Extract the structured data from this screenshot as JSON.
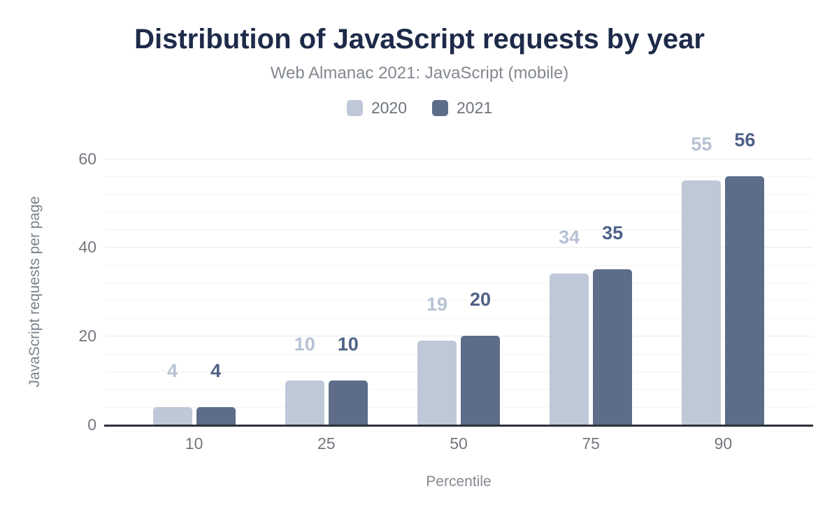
{
  "chart_data": {
    "type": "bar",
    "title": "Distribution of JavaScript requests by year",
    "subtitle": "Web Almanac 2021: JavaScript (mobile)",
    "categories": [
      "10",
      "25",
      "50",
      "75",
      "90"
    ],
    "series": [
      {
        "name": "2020",
        "color": "#bfc8d7",
        "label_color": "#b7c2d4",
        "values": [
          4,
          10,
          19,
          34,
          55
        ]
      },
      {
        "name": "2021",
        "color": "#5d6d89",
        "label_color": "#4f6187",
        "values": [
          4,
          10,
          20,
          35,
          56
        ]
      }
    ],
    "xlabel": "Percentile",
    "ylabel": "JavaScript requests per page",
    "ylim": [
      0,
      60
    ],
    "yticks": [
      0,
      20,
      40,
      60
    ],
    "minor_grid_step": 4,
    "grid": true,
    "legend_position": "top",
    "data_labels": true
  },
  "colors": {
    "title_text": "#1e2a49",
    "subtitle_text": "#83888f",
    "tick_text": "#74787e",
    "axis_title_text": "#7b828c",
    "legend_text": "#6e747e",
    "axis_line": "#2d3137",
    "gridline_minor": "#f4f4f6",
    "gridline_major": "#eaecef"
  }
}
